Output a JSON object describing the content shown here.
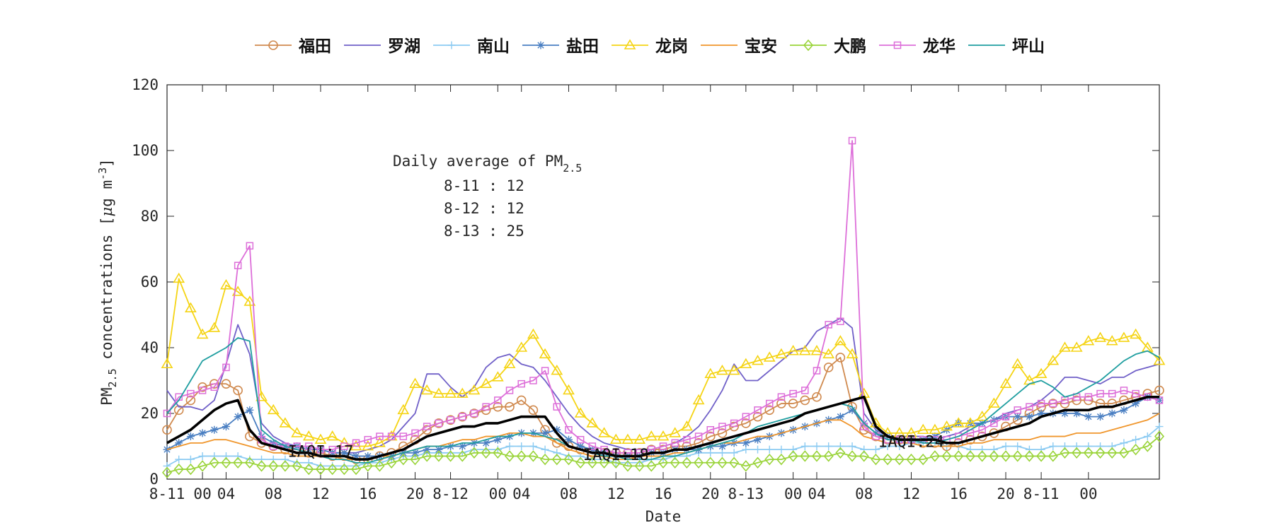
{
  "chart_data": {
    "type": "line",
    "xlabel": "Date",
    "ylabel_main": "PM",
    "ylabel_sub": "2.5",
    "ylabel_rest": " concentrations [",
    "ylabel_mu": "μ",
    "ylabel_unit": "g m",
    "ylabel_sup": "-3",
    "ylabel_close": "]",
    "ylim": [
      0,
      120
    ],
    "xlim": [
      0,
      84
    ],
    "yticks": [
      0,
      20,
      40,
      60,
      80,
      100,
      120
    ],
    "xticks": [
      {
        "x": 0,
        "label": "8-11"
      },
      {
        "x": 3,
        "label": "00"
      },
      {
        "x": 5,
        "label": "04"
      },
      {
        "x": 9,
        "label": "08"
      },
      {
        "x": 13,
        "label": "12"
      },
      {
        "x": 17,
        "label": "16"
      },
      {
        "x": 21,
        "label": "20"
      },
      {
        "x": 24,
        "label": "8-12"
      },
      {
        "x": 28,
        "label": "00"
      },
      {
        "x": 30,
        "label": "04"
      },
      {
        "x": 34,
        "label": "08"
      },
      {
        "x": 38,
        "label": "12"
      },
      {
        "x": 42,
        "label": "16"
      },
      {
        "x": 46,
        "label": "20"
      },
      {
        "x": 49,
        "label": "8-13"
      },
      {
        "x": 53,
        "label": "00"
      },
      {
        "x": 55,
        "label": "04"
      },
      {
        "x": 59,
        "label": "08"
      },
      {
        "x": 63,
        "label": "12"
      },
      {
        "x": 67,
        "label": "16"
      },
      {
        "x": 71,
        "label": "20"
      },
      {
        "x": 74,
        "label": "8-11"
      },
      {
        "x": 78,
        "label": "00"
      }
    ],
    "grid": false,
    "legend_position": "top",
    "annotation": {
      "title_main": "Daily average of PM",
      "title_sub": "2.5",
      "lines": [
        "8-11 : 12",
        "8-12 : 12",
        "8-13 : 25"
      ]
    },
    "iaqi_labels": [
      {
        "x": 13,
        "y": 8.5,
        "text": "IAQI:17"
      },
      {
        "x": 38,
        "y": 7.5,
        "text": "IAQI:18"
      },
      {
        "x": 63,
        "y": 11.5,
        "text": "IAQI:24"
      }
    ],
    "series": [
      {
        "name": "福田",
        "color": "#d08a4f",
        "marker": "circle",
        "values": [
          15,
          21,
          24,
          28,
          29,
          29,
          27,
          13,
          11,
          10,
          9,
          9,
          8,
          8,
          7,
          7,
          6,
          6,
          7,
          8,
          10,
          12,
          15,
          17,
          18,
          19,
          20,
          21,
          22,
          22,
          24,
          21,
          15,
          11,
          10,
          9,
          8,
          8,
          8,
          8,
          8,
          9,
          9,
          10,
          10,
          11,
          13,
          14,
          16,
          17,
          19,
          21,
          23,
          23,
          24,
          25,
          34,
          37,
          22,
          15,
          13,
          12,
          12,
          12,
          11,
          11,
          10,
          11,
          12,
          13,
          14,
          16,
          18,
          20,
          22,
          23,
          23,
          24,
          24,
          23,
          23,
          24,
          25,
          26,
          27
        ]
      },
      {
        "name": "罗湖",
        "color": "#7060c8",
        "marker": "none",
        "values": [
          27,
          22,
          22,
          21,
          24,
          35,
          47,
          38,
          17,
          13,
          11,
          10,
          9,
          9,
          8,
          8,
          8,
          9,
          10,
          12,
          16,
          20,
          32,
          32,
          28,
          25,
          28,
          34,
          37,
          38,
          35,
          34,
          30,
          25,
          20,
          16,
          13,
          11,
          10,
          9,
          9,
          9,
          10,
          11,
          13,
          16,
          21,
          27,
          35,
          30,
          30,
          33,
          36,
          39,
          40,
          45,
          47,
          49,
          46,
          20,
          15,
          13,
          13,
          13,
          13,
          12,
          13,
          14,
          16,
          17,
          18,
          20,
          21,
          22,
          24,
          27,
          31,
          31,
          30,
          29,
          31,
          31,
          33,
          34,
          35
        ]
      },
      {
        "name": "南山",
        "color": "#8ccbf2",
        "marker": "plus",
        "values": [
          4,
          6,
          6,
          7,
          7,
          7,
          7,
          6,
          6,
          6,
          6,
          5,
          5,
          4,
          4,
          4,
          4,
          5,
          5,
          6,
          7,
          7,
          8,
          8,
          8,
          8,
          9,
          9,
          9,
          10,
          10,
          10,
          9,
          8,
          7,
          7,
          6,
          6,
          5,
          5,
          5,
          6,
          6,
          7,
          7,
          8,
          8,
          8,
          8,
          9,
          9,
          9,
          9,
          9,
          10,
          10,
          10,
          10,
          10,
          9,
          9,
          10,
          10,
          11,
          11,
          11,
          10,
          10,
          9,
          9,
          9,
          10,
          10,
          9,
          9,
          10,
          10,
          10,
          10,
          10,
          10,
          11,
          12,
          13,
          16
        ]
      },
      {
        "name": "盐田",
        "color": "#4a7fc2",
        "marker": "star",
        "values": [
          9,
          11,
          13,
          14,
          15,
          16,
          19,
          21,
          13,
          11,
          10,
          10,
          9,
          9,
          8,
          8,
          7,
          7,
          7,
          7,
          8,
          8,
          9,
          9,
          10,
          10,
          11,
          11,
          12,
          13,
          14,
          14,
          14,
          15,
          12,
          10,
          9,
          8,
          7,
          7,
          7,
          8,
          8,
          9,
          9,
          9,
          10,
          10,
          11,
          11,
          12,
          13,
          14,
          15,
          16,
          17,
          18,
          19,
          21,
          17,
          14,
          13,
          12,
          12,
          12,
          13,
          15,
          17,
          17,
          17,
          18,
          19,
          19,
          19,
          20,
          20,
          20,
          20,
          19,
          19,
          20,
          21,
          23,
          25,
          24
        ]
      },
      {
        "name": "龙岗",
        "color": "#f5d414",
        "marker": "triangle",
        "values": [
          35,
          61,
          52,
          44,
          46,
          59,
          57,
          54,
          25,
          21,
          17,
          14,
          13,
          12,
          13,
          11,
          10,
          10,
          11,
          13,
          21,
          29,
          27,
          26,
          26,
          26,
          27,
          29,
          31,
          35,
          40,
          44,
          38,
          33,
          27,
          20,
          17,
          14,
          12,
          12,
          12,
          13,
          13,
          14,
          16,
          24,
          32,
          33,
          33,
          35,
          36,
          37,
          38,
          39,
          39,
          39,
          38,
          42,
          38,
          26,
          17,
          14,
          14,
          14,
          15,
          15,
          16,
          17,
          17,
          19,
          23,
          29,
          35,
          30,
          32,
          36,
          40,
          40,
          42,
          43,
          42,
          43,
          44,
          40,
          36
        ]
      },
      {
        "name": "宝安",
        "color": "#f0962c",
        "marker": "none",
        "values": [
          9,
          10,
          11,
          11,
          12,
          12,
          11,
          10,
          9,
          8,
          8,
          7,
          7,
          7,
          7,
          6,
          6,
          6,
          7,
          7,
          8,
          9,
          10,
          10,
          11,
          12,
          12,
          13,
          13,
          14,
          14,
          13,
          13,
          11,
          9,
          8,
          7,
          7,
          6,
          6,
          7,
          7,
          7,
          8,
          8,
          9,
          10,
          11,
          11,
          12,
          13,
          13,
          14,
          15,
          16,
          17,
          18,
          18,
          16,
          13,
          12,
          11,
          11,
          11,
          10,
          10,
          10,
          10,
          11,
          11,
          12,
          12,
          12,
          12,
          13,
          13,
          13,
          14,
          14,
          14,
          15,
          16,
          17,
          18,
          20
        ]
      },
      {
        "name": "大鹏",
        "color": "#9ad43a",
        "marker": "diamond",
        "values": [
          2,
          3,
          3,
          4,
          5,
          5,
          5,
          5,
          4,
          4,
          4,
          4,
          3,
          3,
          3,
          3,
          3,
          4,
          4,
          5,
          6,
          6,
          7,
          7,
          7,
          7,
          8,
          8,
          8,
          7,
          7,
          7,
          6,
          6,
          6,
          5,
          5,
          5,
          5,
          4,
          4,
          4,
          5,
          5,
          5,
          5,
          5,
          5,
          5,
          4,
          5,
          6,
          6,
          7,
          7,
          7,
          7,
          8,
          7,
          7,
          6,
          6,
          6,
          6,
          6,
          7,
          7,
          7,
          7,
          7,
          7,
          7,
          7,
          7,
          7,
          7,
          8,
          8,
          8,
          8,
          8,
          8,
          9,
          10,
          13
        ]
      },
      {
        "name": "龙华",
        "color": "#dd6fd9",
        "marker": "square",
        "values": [
          20,
          25,
          26,
          27,
          28,
          34,
          65,
          71,
          12,
          10,
          10,
          10,
          10,
          9,
          9,
          10,
          11,
          12,
          13,
          13,
          13,
          14,
          16,
          17,
          18,
          19,
          20,
          22,
          24,
          27,
          29,
          30,
          33,
          22,
          15,
          12,
          10,
          9,
          8,
          8,
          8,
          9,
          10,
          11,
          12,
          13,
          15,
          16,
          17,
          19,
          21,
          23,
          25,
          26,
          27,
          33,
          47,
          48,
          103,
          16,
          13,
          12,
          12,
          12,
          12,
          12,
          12,
          13,
          14,
          15,
          17,
          19,
          21,
          22,
          23,
          23,
          24,
          25,
          25,
          26,
          26,
          27,
          26,
          25,
          24
        ]
      },
      {
        "name": "坪山",
        "color": "#1f9ea0",
        "marker": "none",
        "values": [
          20,
          24,
          30,
          36,
          38,
          40,
          43,
          42,
          15,
          12,
          10,
          9,
          8,
          7,
          6,
          6,
          5,
          5,
          6,
          7,
          8,
          9,
          10,
          10,
          10,
          11,
          11,
          12,
          13,
          13,
          14,
          14,
          13,
          12,
          10,
          9,
          8,
          7,
          7,
          6,
          6,
          6,
          7,
          7,
          8,
          9,
          10,
          11,
          12,
          14,
          16,
          17,
          18,
          19,
          20,
          21,
          22,
          23,
          22,
          17,
          14,
          12,
          12,
          12,
          11,
          11,
          12,
          13,
          15,
          17,
          20,
          23,
          26,
          29,
          30,
          28,
          25,
          26,
          28,
          30,
          33,
          36,
          38,
          39,
          37
        ]
      },
      {
        "name": "",
        "color": "#000000",
        "marker": "none",
        "bold": true,
        "values": [
          11,
          13,
          15,
          18,
          21,
          23,
          24,
          15,
          11,
          10,
          9,
          8,
          8,
          7,
          7,
          7,
          6,
          6,
          7,
          8,
          9,
          11,
          13,
          14,
          15,
          16,
          16,
          17,
          17,
          18,
          19,
          19,
          19,
          14,
          10,
          9,
          8,
          8,
          7,
          7,
          7,
          8,
          8,
          9,
          9,
          10,
          11,
          12,
          13,
          14,
          15,
          16,
          17,
          18,
          20,
          21,
          22,
          23,
          24,
          25,
          16,
          13,
          12,
          12,
          12,
          12,
          11,
          11,
          12,
          13,
          14,
          15,
          16,
          17,
          19,
          20,
          21,
          21,
          21,
          22,
          22,
          23,
          24,
          25,
          25
        ]
      }
    ]
  }
}
